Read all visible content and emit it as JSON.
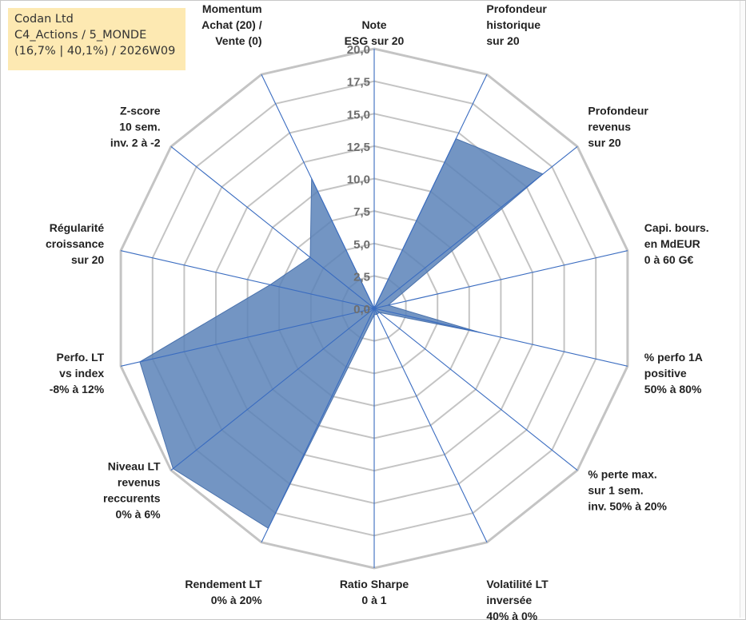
{
  "header": {
    "lines": [
      "Codan Ltd",
      "C4_Actions / 5_MONDE",
      "(16,7% | 40,1%) / 2026W09"
    ]
  },
  "colors": {
    "fill": "#5b82b8",
    "fill_stroke": "#4a72ad",
    "spokes": "#3a6cc0",
    "grid": "#c4c4c4",
    "title_bg": "#fde9b2"
  },
  "chart_data": {
    "type": "radar",
    "title": "Codan Ltd",
    "rmin": 0,
    "rmax": 20,
    "tick_step": 2.5,
    "ticks": [
      "0,0",
      "2,5",
      "5,0",
      "7,5",
      "10,0",
      "12,5",
      "15,0",
      "17,5",
      "20,0"
    ],
    "axes": [
      {
        "label": [
          "Note",
          "ESG sur 20"
        ],
        "value": 0
      },
      {
        "label": [
          "Profondeur",
          "historique",
          "sur 20"
        ],
        "value": 14.5
      },
      {
        "label": [
          "Profondeur",
          "revenus",
          "sur 20"
        ],
        "value": 16.6
      },
      {
        "label": [
          "Capi. bours.",
          "en MdEUR",
          "0 à 60 G€"
        ],
        "value": 1.1
      },
      {
        "label": [
          "% perfo 1A",
          "positive",
          "50% à 80%"
        ],
        "value": 8.4
      },
      {
        "label": [
          "% perte max.",
          "sur 1 sem.",
          "inv. 50% à 20%"
        ],
        "value": 0.5
      },
      {
        "label": [
          "Volatilité LT",
          "inversée",
          "40% à 0%"
        ],
        "value": 0.5
      },
      {
        "label": [
          "Ratio Sharpe",
          "0 à 1"
        ],
        "value": 0.5
      },
      {
        "label": [
          "Rendement LT",
          "0% à 20%"
        ],
        "value": 18.8
      },
      {
        "label": [
          "Niveau LT",
          "revenus",
          "reccurents",
          "0% à 6%"
        ],
        "value": 19.8
      },
      {
        "label": [
          "Perfo. LT",
          "vs index",
          "-8% à 12%"
        ],
        "value": 18.5
      },
      {
        "label": [
          "Régularité",
          "croissance",
          "sur 20"
        ],
        "value": 8.2
      },
      {
        "label": [
          "Z-score",
          "10 sem.",
          "inv. 2 à -2"
        ],
        "value": 6.3
      },
      {
        "label": [
          "Momentum",
          "Achat (20) /",
          "Vente (0)"
        ],
        "value": 11.1
      }
    ]
  }
}
